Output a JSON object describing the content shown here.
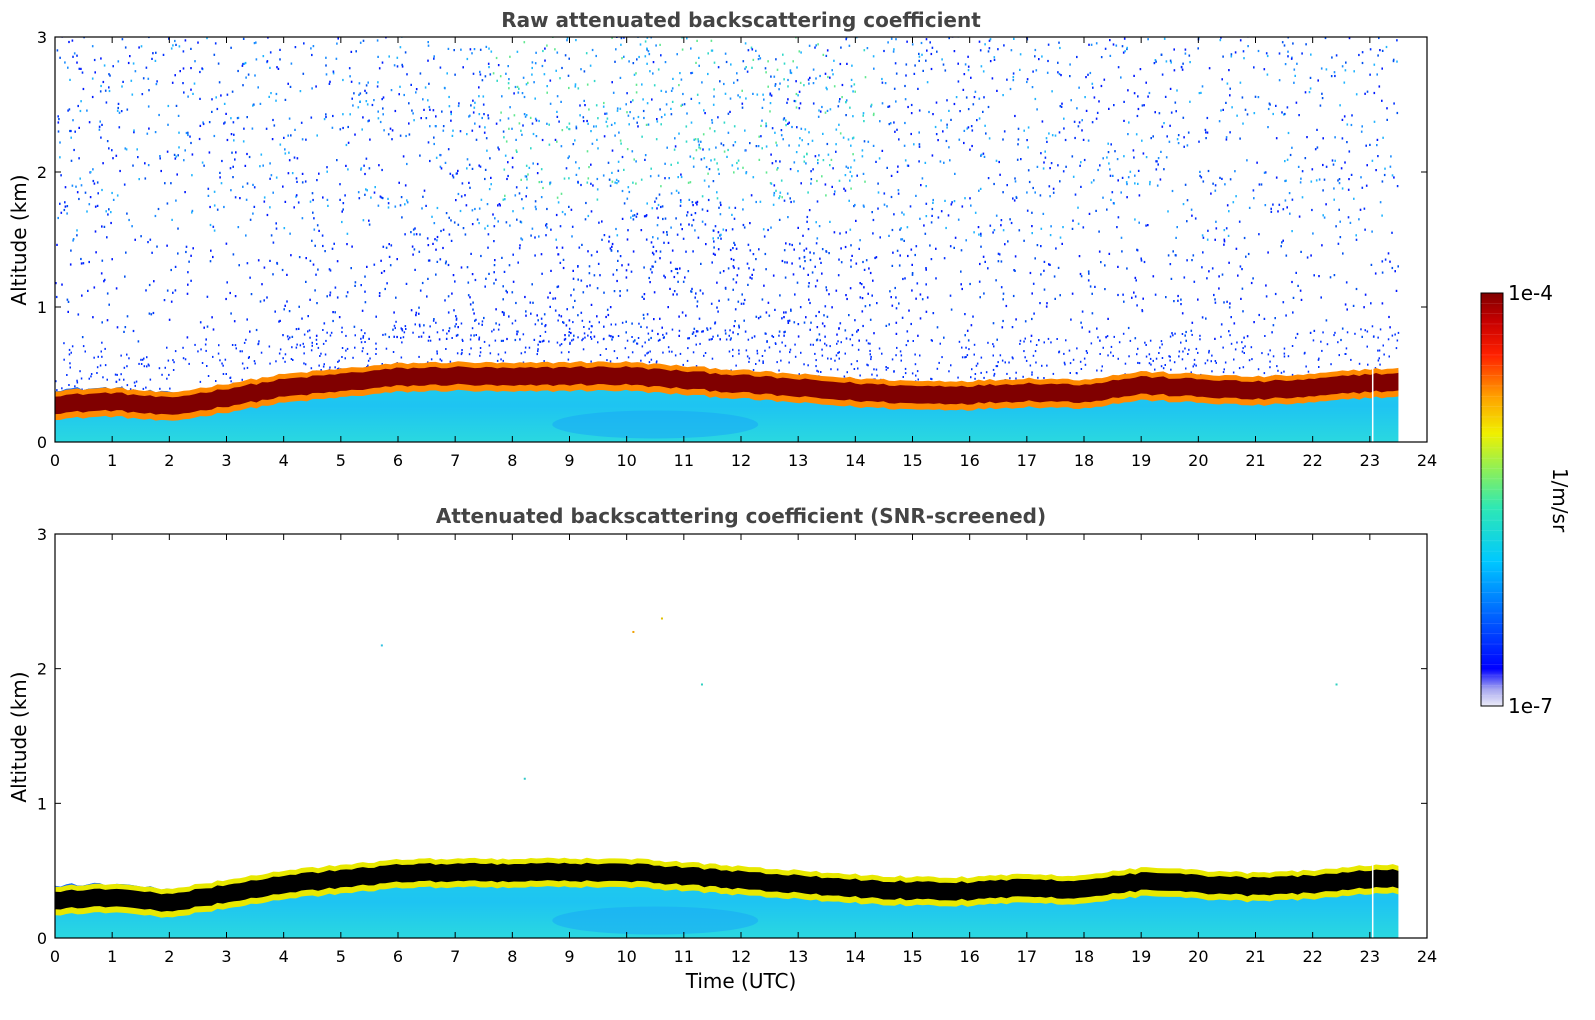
{
  "chart_data": [
    {
      "type": "heatmap",
      "title": "Raw attenuated backscattering coefficient",
      "xlabel": "",
      "ylabel": "Altitude (km)",
      "xlim": [
        0,
        24
      ],
      "ylim": [
        0,
        3
      ],
      "xticks": [
        0,
        1,
        2,
        3,
        4,
        5,
        6,
        7,
        8,
        9,
        10,
        11,
        12,
        13,
        14,
        15,
        16,
        17,
        18,
        19,
        20,
        21,
        22,
        23,
        24
      ],
      "yticks": [
        0,
        1,
        2,
        3
      ],
      "data_extent_hours": 23.5,
      "layer_top_km_by_hour": [
        0.39,
        0.4,
        0.36,
        0.4,
        0.46,
        0.52,
        0.56,
        0.58,
        0.57,
        0.56,
        0.55,
        0.52,
        0.48,
        0.45,
        0.42,
        0.41,
        0.42,
        0.43,
        0.42,
        0.48,
        0.46,
        0.46,
        0.47,
        0.52
      ],
      "layer_core_km_by_hour": [
        0.28,
        0.3,
        0.26,
        0.33,
        0.4,
        0.44,
        0.48,
        0.49,
        0.48,
        0.49,
        0.49,
        0.46,
        0.43,
        0.4,
        0.37,
        0.35,
        0.35,
        0.37,
        0.36,
        0.42,
        0.4,
        0.38,
        0.4,
        0.44
      ],
      "screened": false
    },
    {
      "type": "heatmap",
      "title": "Attenuated backscattering coefficient (SNR-screened)",
      "xlabel": "Time (UTC)",
      "ylabel": "Altitude (km)",
      "xlim": [
        0,
        24
      ],
      "ylim": [
        0,
        3
      ],
      "xticks": [
        0,
        1,
        2,
        3,
        4,
        5,
        6,
        7,
        8,
        9,
        10,
        11,
        12,
        13,
        14,
        15,
        16,
        17,
        18,
        19,
        20,
        21,
        22,
        23,
        24
      ],
      "yticks": [
        0,
        1,
        2,
        3
      ],
      "data_extent_hours": 23.5,
      "layer_top_km_by_hour": [
        0.39,
        0.4,
        0.36,
        0.4,
        0.46,
        0.52,
        0.56,
        0.58,
        0.57,
        0.56,
        0.55,
        0.52,
        0.48,
        0.45,
        0.42,
        0.41,
        0.42,
        0.43,
        0.42,
        0.48,
        0.46,
        0.46,
        0.47,
        0.52
      ],
      "layer_core_km_by_hour": [
        0.28,
        0.3,
        0.26,
        0.33,
        0.4,
        0.44,
        0.48,
        0.49,
        0.48,
        0.49,
        0.49,
        0.46,
        0.43,
        0.4,
        0.37,
        0.35,
        0.35,
        0.37,
        0.36,
        0.42,
        0.4,
        0.38,
        0.4,
        0.44
      ],
      "screened": true
    }
  ],
  "colorbar": {
    "label": "1/m/sr",
    "min_label": "1e-7",
    "max_label": "1e-4",
    "colormap": "jet",
    "scale": "log"
  },
  "colors": {
    "core_raw": "#800000",
    "core_screened": "#000000",
    "aerosol": "#1ec8f0",
    "title": "#444444"
  }
}
